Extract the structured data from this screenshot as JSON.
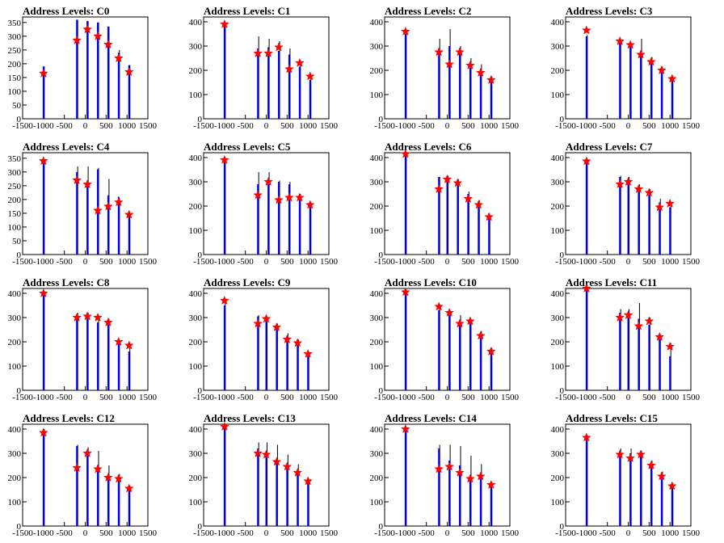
{
  "colors": {
    "hist": "#0000ff",
    "overlay": "#000000",
    "marker": "#ff0000",
    "frame": "#000000"
  },
  "chart_data": [
    {
      "type": "bar",
      "title": "Address Levels: C0",
      "xlim": [
        -1500,
        1500
      ],
      "ylim": [
        0,
        370
      ],
      "x_ticks": [
        "-1500",
        "-1000",
        "-500",
        "0",
        "500",
        "1000",
        "1500"
      ],
      "y_ticks": [
        "0",
        "50",
        "100",
        "150",
        "200",
        "250",
        "300",
        "350"
      ],
      "peaks": {
        "x": [
          -1000,
          -200,
          50,
          300,
          550,
          800,
          1050
        ],
        "blue": [
          190,
          360,
          355,
          350,
          335,
          240,
          195
        ],
        "black": [
          190,
          360,
          355,
          350,
          335,
          250,
          195
        ]
      },
      "markers": {
        "x": [
          -1000,
          -200,
          50,
          300,
          550,
          800,
          1050
        ],
        "y": [
          165,
          285,
          325,
          300,
          270,
          220,
          170
        ]
      }
    },
    {
      "type": "bar",
      "title": "Address Levels: C1",
      "xlim": [
        -1500,
        1500
      ],
      "ylim": [
        0,
        420
      ],
      "x_ticks": [
        "-1500",
        "-1000",
        "-500",
        "0",
        "500",
        "1000",
        "1500"
      ],
      "y_ticks": [
        "0",
        "100",
        "200",
        "300",
        "400"
      ],
      "peaks": {
        "x": [
          -1000,
          -200,
          50,
          300,
          550,
          800,
          1050
        ],
        "blue": [
          395,
          290,
          295,
          280,
          265,
          215,
          160
        ],
        "black": [
          395,
          340,
          330,
          320,
          290,
          240,
          180
        ]
      },
      "markers": {
        "x": [
          -1000,
          -200,
          50,
          300,
          550,
          800,
          1050
        ],
        "y": [
          390,
          270,
          270,
          295,
          205,
          230,
          175
        ]
      }
    },
    {
      "type": "bar",
      "title": "Address Levels: C2",
      "xlim": [
        -1500,
        1500
      ],
      "ylim": [
        0,
        420
      ],
      "x_ticks": [
        "-1500",
        "-1000",
        "-500",
        "0",
        "500",
        "1000",
        "1500"
      ],
      "y_ticks": [
        "0",
        "100",
        "200",
        "300",
        "400"
      ],
      "peaks": {
        "x": [
          -1000,
          -200,
          50,
          300,
          550,
          800,
          1050
        ],
        "blue": [
          350,
          290,
          300,
          290,
          210,
          190,
          155
        ],
        "black": [
          355,
          330,
          370,
          300,
          250,
          225,
          175
        ]
      },
      "markers": {
        "x": [
          -1000,
          -200,
          50,
          300,
          550,
          800,
          1050
        ],
        "y": [
          360,
          275,
          225,
          275,
          220,
          190,
          160
        ]
      }
    },
    {
      "type": "bar",
      "title": "Address Levels: C3",
      "xlim": [
        -1500,
        1500
      ],
      "ylim": [
        0,
        420
      ],
      "x_ticks": [
        "-1500",
        "-1000",
        "-500",
        "0",
        "500",
        "1000",
        "1500"
      ],
      "y_ticks": [
        "0",
        "100",
        "200",
        "300",
        "400"
      ],
      "peaks": {
        "x": [
          -1000,
          -200,
          50,
          300,
          550,
          800,
          1050
        ],
        "blue": [
          340,
          320,
          305,
          275,
          240,
          195,
          165
        ],
        "black": [
          345,
          320,
          310,
          330,
          255,
          215,
          175
        ]
      },
      "markers": {
        "x": [
          -1000,
          -200,
          50,
          300,
          550,
          800,
          1050
        ],
        "y": [
          365,
          320,
          305,
          265,
          235,
          200,
          165
        ]
      }
    },
    {
      "type": "bar",
      "title": "Address Levels: C4",
      "xlim": [
        -1500,
        1500
      ],
      "ylim": [
        0,
        370
      ],
      "x_ticks": [
        "-1500",
        "-1000",
        "-500",
        "0",
        "500",
        "1000",
        "1500"
      ],
      "y_ticks": [
        "0",
        "50",
        "100",
        "150",
        "200",
        "250",
        "300",
        "350"
      ],
      "peaks": {
        "x": [
          -1000,
          -200,
          50,
          300,
          550,
          800,
          1050
        ],
        "blue": [
          340,
          300,
          265,
          310,
          215,
          210,
          155
        ],
        "black": [
          340,
          320,
          320,
          315,
          275,
          205,
          150
        ]
      },
      "markers": {
        "x": [
          -1000,
          -200,
          50,
          300,
          550,
          800,
          1050
        ],
        "y": [
          340,
          270,
          255,
          160,
          175,
          190,
          145
        ]
      }
    },
    {
      "type": "bar",
      "title": "Address Levels: C5",
      "xlim": [
        -1500,
        1500
      ],
      "ylim": [
        0,
        420
      ],
      "x_ticks": [
        "-1500",
        "-1000",
        "-500",
        "0",
        "500",
        "1000",
        "1500"
      ],
      "y_ticks": [
        "0",
        "100",
        "200",
        "300",
        "400"
      ],
      "peaks": {
        "x": [
          -1000,
          -200,
          50,
          300,
          550,
          800,
          1050
        ],
        "blue": [
          395,
          290,
          290,
          300,
          290,
          245,
          215
        ],
        "black": [
          395,
          340,
          340,
          305,
          300,
          250,
          215
        ]
      },
      "markers": {
        "x": [
          -1000,
          -200,
          50,
          300,
          550,
          800,
          1050
        ],
        "y": [
          390,
          245,
          300,
          225,
          235,
          235,
          205
        ]
      }
    },
    {
      "type": "bar",
      "title": "Address Levels: C6",
      "xlim": [
        -1500,
        1500
      ],
      "ylim": [
        0,
        420
      ],
      "x_ticks": [
        "-1500",
        "-1000",
        "-500",
        "0",
        "500",
        "1000",
        "1500"
      ],
      "y_ticks": [
        "0",
        "100",
        "200",
        "300",
        "400"
      ],
      "peaks": {
        "x": [
          -1000,
          -200,
          0,
          250,
          500,
          750,
          1000
        ],
        "blue": [
          410,
          320,
          325,
          300,
          250,
          220,
          170
        ],
        "black": [
          410,
          320,
          325,
          310,
          260,
          225,
          165
        ]
      },
      "markers": {
        "x": [
          -1000,
          -200,
          0,
          250,
          500,
          750,
          1000
        ],
        "y": [
          415,
          270,
          310,
          295,
          230,
          205,
          155
        ]
      }
    },
    {
      "type": "bar",
      "title": "Address Levels: C7",
      "xlim": [
        -1500,
        1500
      ],
      "ylim": [
        0,
        420
      ],
      "x_ticks": [
        "-1500",
        "-1000",
        "-500",
        "0",
        "500",
        "1000",
        "1500"
      ],
      "y_ticks": [
        "0",
        "100",
        "200",
        "300",
        "400"
      ],
      "peaks": {
        "x": [
          -1000,
          -200,
          0,
          250,
          500,
          750,
          1000
        ],
        "blue": [
          385,
          320,
          300,
          285,
          265,
          215,
          195
        ],
        "black": [
          385,
          325,
          320,
          290,
          270,
          230,
          200
        ]
      },
      "markers": {
        "x": [
          -1000,
          -200,
          0,
          250,
          500,
          750,
          1000
        ],
        "y": [
          385,
          290,
          300,
          270,
          255,
          195,
          210
        ]
      }
    },
    {
      "type": "bar",
      "title": "Address Levels: C8",
      "xlim": [
        -1500,
        1500
      ],
      "ylim": [
        0,
        420
      ],
      "x_ticks": [
        "-1500",
        "-1000",
        "-500",
        "0",
        "500",
        "1000",
        "1500"
      ],
      "y_ticks": [
        "0",
        "100",
        "200",
        "300",
        "400"
      ],
      "peaks": {
        "x": [
          -1000,
          -200,
          50,
          300,
          550,
          800,
          1050
        ],
        "blue": [
          410,
          310,
          295,
          280,
          290,
          195,
          160
        ],
        "black": [
          410,
          320,
          320,
          310,
          295,
          200,
          185
        ]
      },
      "markers": {
        "x": [
          -1000,
          -200,
          50,
          300,
          550,
          800,
          1050
        ],
        "y": [
          400,
          300,
          305,
          300,
          280,
          200,
          185
        ]
      }
    },
    {
      "type": "bar",
      "title": "Address Levels: C9",
      "xlim": [
        -1500,
        1500
      ],
      "ylim": [
        0,
        420
      ],
      "x_ticks": [
        "-1500",
        "-1000",
        "-500",
        "0",
        "500",
        "1000",
        "1500"
      ],
      "y_ticks": [
        "0",
        "100",
        "200",
        "300",
        "400"
      ],
      "peaks": {
        "x": [
          -1000,
          -200,
          0,
          250,
          500,
          750,
          1000
        ],
        "blue": [
          350,
          305,
          300,
          270,
          225,
          210,
          160
        ],
        "black": [
          360,
          310,
          305,
          275,
          235,
          210,
          160
        ]
      },
      "markers": {
        "x": [
          -1000,
          -200,
          0,
          250,
          500,
          750,
          1000
        ],
        "y": [
          370,
          275,
          295,
          260,
          210,
          195,
          150
        ]
      }
    },
    {
      "type": "bar",
      "title": "Address Levels: C10",
      "xlim": [
        -1500,
        1500
      ],
      "ylim": [
        0,
        420
      ],
      "x_ticks": [
        "-1500",
        "-1000",
        "-500",
        "0",
        "500",
        "1000",
        "1500"
      ],
      "y_ticks": [
        "0",
        "100",
        "200",
        "300",
        "400"
      ],
      "peaks": {
        "x": [
          -1000,
          -200,
          50,
          300,
          550,
          800,
          1050
        ],
        "blue": [
          400,
          330,
          310,
          280,
          290,
          240,
          170
        ],
        "black": [
          400,
          355,
          330,
          310,
          290,
          245,
          175
        ]
      },
      "markers": {
        "x": [
          -1000,
          -200,
          50,
          300,
          550,
          800,
          1050
        ],
        "y": [
          405,
          345,
          320,
          275,
          285,
          225,
          160
        ]
      }
    },
    {
      "type": "bar",
      "title": "Address Levels: C11",
      "xlim": [
        -1500,
        1500
      ],
      "ylim": [
        0,
        420
      ],
      "x_ticks": [
        "-1500",
        "-1000",
        "-500",
        "0",
        "500",
        "1000",
        "1500"
      ],
      "y_ticks": [
        "0",
        "100",
        "200",
        "300",
        "400"
      ],
      "peaks": {
        "x": [
          -1000,
          -200,
          0,
          250,
          500,
          750,
          1000
        ],
        "blue": [
          420,
          320,
          300,
          295,
          270,
          210,
          140
        ],
        "black": [
          425,
          335,
          335,
          360,
          300,
          230,
          195
        ]
      },
      "markers": {
        "x": [
          -1000,
          -200,
          0,
          250,
          500,
          750,
          1000
        ],
        "y": [
          420,
          300,
          310,
          265,
          285,
          220,
          180
        ]
      }
    },
    {
      "type": "bar",
      "title": "Address Levels: C12",
      "xlim": [
        -1500,
        1500
      ],
      "ylim": [
        0,
        420
      ],
      "x_ticks": [
        "-1500",
        "-1000",
        "-500",
        "0",
        "500",
        "1000",
        "1500"
      ],
      "y_ticks": [
        "0",
        "100",
        "200",
        "300",
        "400"
      ],
      "peaks": {
        "x": [
          -1000,
          -200,
          50,
          300,
          550,
          800,
          1050
        ],
        "blue": [
          400,
          330,
          295,
          250,
          200,
          210,
          160
        ],
        "black": [
          400,
          335,
          325,
          310,
          250,
          215,
          165
        ]
      },
      "markers": {
        "x": [
          -1000,
          -200,
          50,
          300,
          550,
          800,
          1050
        ],
        "y": [
          385,
          240,
          300,
          235,
          200,
          195,
          155
        ]
      }
    },
    {
      "type": "bar",
      "title": "Address Levels: C13",
      "xlim": [
        -1500,
        1500
      ],
      "ylim": [
        0,
        420
      ],
      "x_ticks": [
        "-1500",
        "-1000",
        "-500",
        "0",
        "500",
        "1000",
        "1500"
      ],
      "y_ticks": [
        "0",
        "100",
        "200",
        "300",
        "400"
      ],
      "peaks": {
        "x": [
          -1000,
          -200,
          0,
          250,
          500,
          750,
          1000
        ],
        "blue": [
          405,
          320,
          305,
          260,
          250,
          225,
          180
        ],
        "black": [
          405,
          345,
          345,
          335,
          295,
          255,
          195
        ]
      },
      "markers": {
        "x": [
          -1000,
          -200,
          0,
          250,
          500,
          750,
          1000
        ],
        "y": [
          410,
          300,
          295,
          265,
          245,
          220,
          185
        ]
      }
    },
    {
      "type": "bar",
      "title": "Address Levels: C14",
      "xlim": [
        -1500,
        1500
      ],
      "ylim": [
        0,
        420
      ],
      "x_ticks": [
        "-1500",
        "-1000",
        "-500",
        "0",
        "500",
        "1000",
        "1500"
      ],
      "y_ticks": [
        "0",
        "100",
        "200",
        "300",
        "400"
      ],
      "peaks": {
        "x": [
          -1000,
          -200,
          50,
          300,
          550,
          800,
          1050
        ],
        "blue": [
          395,
          320,
          270,
          250,
          200,
          210,
          175
        ],
        "black": [
          395,
          335,
          335,
          330,
          290,
          255,
          180
        ]
      },
      "markers": {
        "x": [
          -1000,
          -200,
          50,
          300,
          550,
          800,
          1050
        ],
        "y": [
          400,
          235,
          245,
          220,
          195,
          205,
          170
        ]
      }
    },
    {
      "type": "bar",
      "title": "Address Levels: C15",
      "xlim": [
        -1500,
        1500
      ],
      "ylim": [
        0,
        420
      ],
      "x_ticks": [
        "-1500",
        "-1000",
        "-500",
        "0",
        "500",
        "1000",
        "1500"
      ],
      "y_ticks": [
        "0",
        "100",
        "200",
        "300",
        "400"
      ],
      "peaks": {
        "x": [
          -1000,
          -200,
          50,
          300,
          550,
          800,
          1050
        ],
        "blue": [
          375,
          310,
          300,
          290,
          265,
          220,
          170
        ],
        "black": [
          375,
          320,
          320,
          310,
          270,
          225,
          175
        ]
      },
      "markers": {
        "x": [
          -1000,
          -200,
          50,
          300,
          550,
          800,
          1050
        ],
        "y": [
          365,
          295,
          280,
          295,
          250,
          205,
          165
        ]
      }
    }
  ]
}
